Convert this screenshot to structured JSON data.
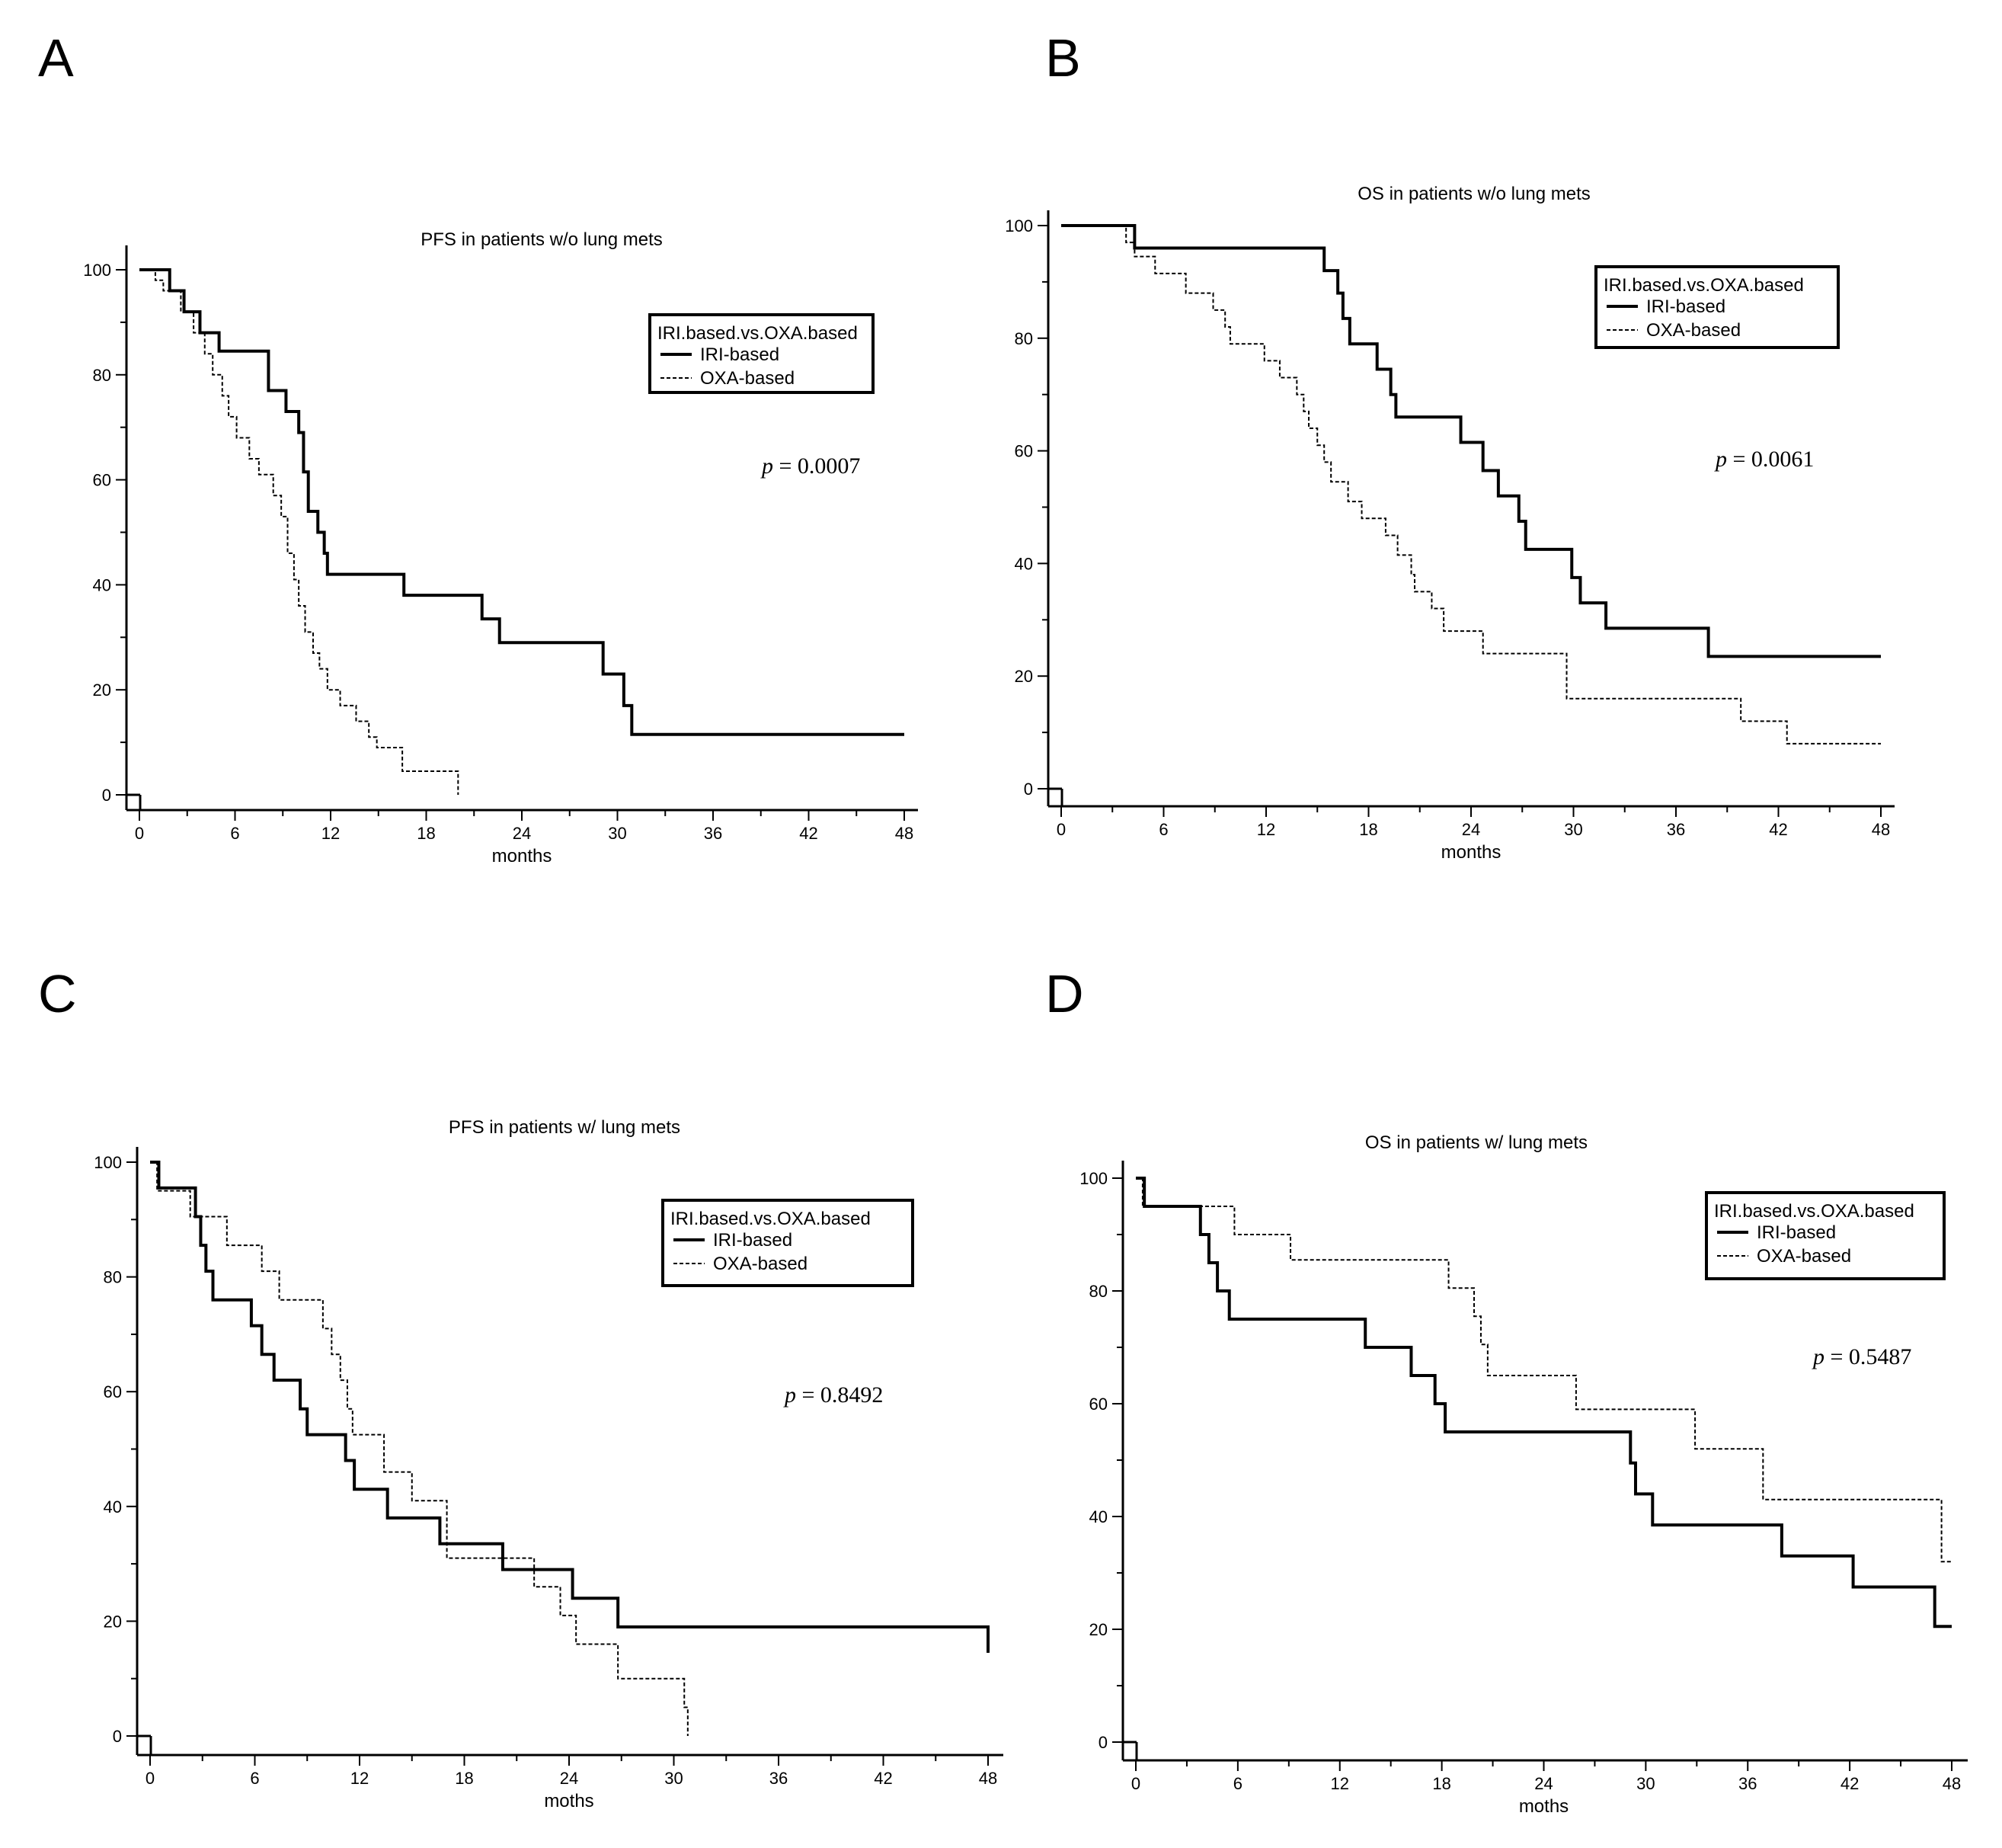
{
  "chart_data": [
    {
      "panel": "A",
      "type": "line",
      "title": "PFS in patients w/o lung mets",
      "xlabel": "months",
      "ylabel": "",
      "xlim": [
        0,
        48
      ],
      "ylim": [
        0,
        100
      ],
      "xticks": [
        "0",
        "6",
        "12",
        "18",
        "24",
        "30",
        "36",
        "42",
        "48"
      ],
      "yticks": [
        "0",
        "20",
        "40",
        "60",
        "80",
        "100"
      ],
      "legend": {
        "title": "IRI.based.vs.OXA.based",
        "position": "top-right"
      },
      "p_label": "p",
      "p_value": "= 0.0007",
      "series": [
        {
          "name": "IRI-based",
          "style": "solid",
          "x": [
            0,
            1.9,
            2.8,
            3.8,
            5.0,
            8.1,
            9.2,
            10.0,
            10.3,
            10.6,
            11.2,
            11.6,
            11.8,
            16.6,
            21.5,
            22.6,
            29.1,
            30.4,
            30.9,
            48
          ],
          "y": [
            100,
            96,
            92,
            88,
            84.5,
            77,
            73,
            69,
            61.5,
            54,
            50,
            46,
            42,
            38,
            33.5,
            29,
            23,
            17,
            11.5,
            11.5
          ]
        },
        {
          "name": "OXA-based",
          "style": "dashed",
          "x": [
            0,
            1.0,
            1.5,
            2.6,
            3.4,
            4.1,
            4.6,
            5.2,
            5.6,
            6.1,
            6.9,
            7.5,
            8.4,
            8.9,
            9.3,
            9.7,
            10.0,
            10.4,
            10.9,
            11.3,
            11.8,
            12.6,
            13.6,
            14.4,
            14.9,
            16.5,
            19.8,
            20.0
          ],
          "y": [
            100,
            98,
            96,
            92,
            88,
            84,
            80,
            76,
            72,
            68,
            64,
            61,
            57,
            53,
            46,
            41,
            36,
            31,
            27,
            24,
            20,
            17,
            14,
            11,
            9,
            4.5,
            4.5,
            0
          ]
        }
      ]
    },
    {
      "panel": "B",
      "type": "line",
      "title": "OS in patients w/o lung mets",
      "xlabel": "months",
      "ylabel": "",
      "xlim": [
        0,
        48
      ],
      "ylim": [
        0,
        100
      ],
      "xticks": [
        "0",
        "6",
        "12",
        "18",
        "24",
        "30",
        "36",
        "42",
        "48"
      ],
      "yticks": [
        "0",
        "20",
        "40",
        "60",
        "80",
        "100"
      ],
      "legend": {
        "title": "IRI.based.vs.OXA.based",
        "position": "top-right"
      },
      "p_label": "p",
      "p_value": "= 0.0061",
      "series": [
        {
          "name": "IRI-based",
          "style": "solid",
          "x": [
            0,
            4.3,
            15.4,
            16.2,
            16.5,
            16.9,
            18.5,
            19.3,
            19.6,
            23.4,
            24.7,
            25.6,
            26.8,
            27.2,
            29.9,
            30.4,
            31.9,
            37.9,
            48
          ],
          "y": [
            100,
            96,
            92,
            88,
            83.5,
            79,
            74.5,
            70,
            66,
            61.5,
            56.5,
            52,
            47.5,
            42.5,
            37.5,
            33,
            28.5,
            23.5,
            23.5
          ]
        },
        {
          "name": "OXA-based",
          "style": "dashed",
          "x": [
            0,
            3.8,
            4.3,
            5.5,
            7.3,
            8.9,
            9.6,
            9.9,
            11.9,
            12.8,
            13.8,
            14.2,
            14.5,
            15.0,
            15.4,
            15.8,
            16.8,
            17.6,
            19.0,
            19.7,
            20.5,
            20.7,
            21.7,
            22.4,
            24.7,
            28.8,
            29.6,
            31.2,
            33.8,
            37.2,
            39.8,
            41.8,
            42.5,
            48
          ],
          "y": [
            100,
            97,
            94.5,
            91.5,
            88,
            85,
            82,
            79,
            76,
            73,
            70,
            67,
            64,
            61,
            58,
            54.5,
            51,
            48,
            45,
            41.5,
            38,
            35,
            32,
            28,
            24,
            24,
            16,
            16,
            16,
            16,
            12,
            12,
            8,
            8
          ]
        }
      ]
    },
    {
      "panel": "C",
      "type": "line",
      "title": "PFS in patients w/ lung mets",
      "xlabel": "moths",
      "ylabel": "",
      "xlim": [
        0,
        48
      ],
      "ylim": [
        0,
        100
      ],
      "xticks": [
        "0",
        "6",
        "12",
        "18",
        "24",
        "30",
        "36",
        "42",
        "48"
      ],
      "yticks": [
        "0",
        "20",
        "40",
        "60",
        "80",
        "100"
      ],
      "legend": {
        "title": "IRI.based.vs.OXA.based",
        "position": "top-right"
      },
      "p_label": "p",
      "p_value": "= 0.8492",
      "series": [
        {
          "name": "IRI-based",
          "style": "solid",
          "x": [
            0,
            0.5,
            2.6,
            2.9,
            3.2,
            3.6,
            5.8,
            6.4,
            7.1,
            8.6,
            9.0,
            11.2,
            11.7,
            13.6,
            16.6,
            20.2,
            24.2,
            26.8,
            48
          ],
          "y": [
            100,
            95.5,
            90.5,
            85.5,
            81,
            76,
            71.5,
            66.5,
            62,
            57,
            52.5,
            48,
            43,
            38,
            33.5,
            29,
            24,
            19,
            14.5
          ]
        },
        {
          "name": "OXA-based",
          "style": "dashed",
          "x": [
            0,
            0.4,
            2.3,
            4.4,
            6.4,
            7.4,
            9.9,
            10.4,
            10.9,
            11.3,
            11.6,
            13.4,
            15.0,
            17.0,
            22.0,
            23.5,
            24.4,
            26.8,
            30.6,
            30.8
          ],
          "y": [
            100,
            95,
            90.5,
            85.5,
            81,
            76,
            71,
            66.5,
            62,
            57,
            52.5,
            46,
            41,
            31,
            26,
            21,
            16,
            10,
            5,
            0
          ]
        }
      ]
    },
    {
      "panel": "D",
      "type": "line",
      "title": "OS in patients w/ lung mets",
      "xlabel": "moths",
      "ylabel": "",
      "xlim": [
        0,
        48
      ],
      "ylim": [
        0,
        100
      ],
      "xticks": [
        "0",
        "6",
        "12",
        "18",
        "24",
        "30",
        "36",
        "42",
        "48"
      ],
      "yticks": [
        "0",
        "20",
        "40",
        "60",
        "80",
        "100"
      ],
      "legend": {
        "title": "IRI.based.vs.OXA.based",
        "position": "top-right"
      },
      "p_label": "p",
      "p_value": "= 0.5487",
      "series": [
        {
          "name": "IRI-based",
          "style": "solid",
          "x": [
            0,
            0.5,
            3.8,
            4.3,
            4.8,
            5.5,
            13.5,
            16.2,
            17.6,
            18.2,
            29.1,
            29.4,
            30.4,
            38.0,
            42.2,
            47.0,
            48
          ],
          "y": [
            100,
            95,
            90,
            85,
            80,
            75,
            70,
            65,
            60,
            55,
            49.5,
            44,
            38.5,
            33,
            27.5,
            20.5,
            20.5
          ]
        },
        {
          "name": "OXA-based",
          "style": "dashed",
          "x": [
            0,
            0.4,
            3.8,
            5.8,
            9.1,
            18.4,
            19.9,
            20.3,
            20.7,
            25.9,
            32.9,
            36.9,
            47.4,
            48
          ],
          "y": [
            100,
            95,
            95,
            90,
            85.5,
            80.5,
            75.5,
            70.5,
            65,
            59,
            52,
            43,
            32,
            32
          ]
        }
      ]
    }
  ]
}
